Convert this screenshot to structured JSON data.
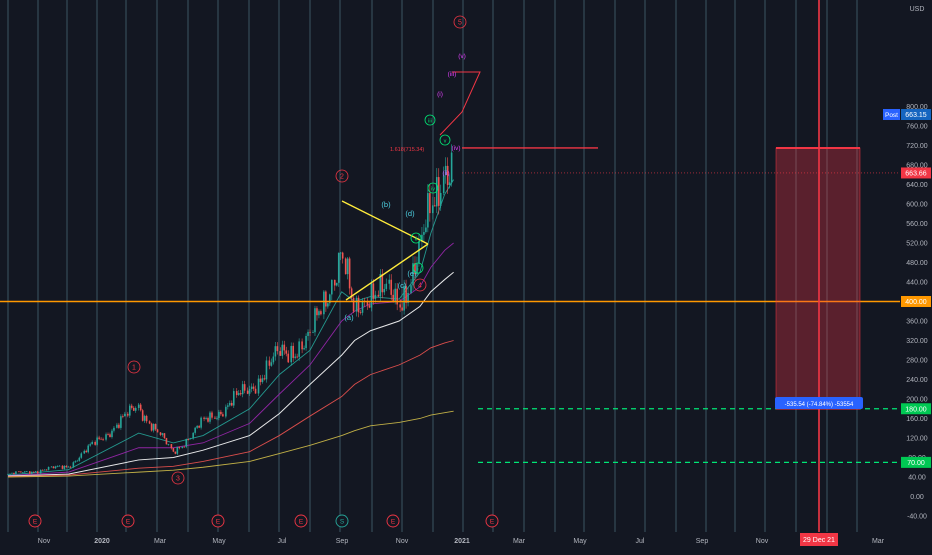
{
  "chart_data": {
    "type": "candlestick",
    "currency": "USD",
    "x_ticks": [
      "Nov",
      "2020",
      "Mar",
      "May",
      "Jul",
      "Sep",
      "Nov",
      "2021",
      "Mar",
      "May",
      "Jul",
      "Sep",
      "Nov",
      "Mar"
    ],
    "y_ticks": [
      "800.00",
      "760.00",
      "720.00",
      "680.00",
      "640.00",
      "600.00",
      "560.00",
      "520.00",
      "480.00",
      "440.00",
      "400.00",
      "360.00",
      "320.00",
      "280.00",
      "240.00",
      "200.00",
      "160.00",
      "120.00",
      "80.00",
      "40.00",
      "0.00",
      "-40.00"
    ],
    "y_range": [
      -50,
      820
    ],
    "price_axis_labels": {
      "last": "663.66",
      "post_tag": "Post",
      "post": "663.15",
      "level_400": "400.00",
      "level_180": "180.00",
      "level_70": "70.00"
    },
    "measure_label": "-535.54 (-74.84%) -53554",
    "date_marker": "29 Dec 21",
    "fib_label": "1.618(715.34)",
    "horizontal_levels": [
      {
        "value": 400,
        "color": "#ff9800",
        "style": "solid"
      },
      {
        "value": 715,
        "color": "#f23645",
        "style": "solid"
      },
      {
        "value": 180,
        "color": "#00e676",
        "style": "dashed"
      },
      {
        "value": 70,
        "color": "#00e676",
        "style": "dashed"
      }
    ],
    "wave_labels": {
      "primary": [
        "1",
        "2",
        "3",
        "4",
        "5"
      ],
      "abcde": [
        "(a)",
        "(b)",
        "(c)",
        "(d)",
        "(e)"
      ],
      "green": [
        "i",
        "ii",
        "iii",
        "iv",
        "v"
      ],
      "minor": [
        "(i)",
        "(ii)",
        "(iii)",
        "(iv)",
        "(v)"
      ]
    },
    "event_markers": [
      "E",
      "E",
      "E",
      "E",
      "S",
      "E",
      "E"
    ],
    "price_series": {
      "dates": [
        "2019-10-01",
        "2019-12-01",
        "2020-02-10",
        "2020-03-16",
        "2020-04-15",
        "2020-06-01",
        "2020-07-01",
        "2020-08-01",
        "2020-09-02",
        "2020-09-15",
        "2020-10-01",
        "2020-10-30",
        "2020-11-20",
        "2020-12-01",
        "2020-12-15",
        "2020-12-24"
      ],
      "close": [
        45,
        62,
        185,
        90,
        150,
        220,
        290,
        320,
        500,
        370,
        430,
        400,
        490,
        585,
        690,
        663
      ]
    },
    "moving_averages": [
      {
        "color": "#26a69a",
        "values": [
          44,
          55,
          130,
          110,
          125,
          180,
          250,
          300,
          420,
          400,
          410,
          405,
          460,
          540,
          620,
          650
        ]
      },
      {
        "color": "#9c27b0",
        "values": [
          43,
          50,
          100,
          100,
          110,
          150,
          210,
          270,
          360,
          380,
          395,
          400,
          430,
          470,
          505,
          520
        ]
      },
      {
        "color": "#ffffff",
        "values": [
          42,
          46,
          75,
          80,
          95,
          125,
          170,
          230,
          290,
          320,
          340,
          360,
          390,
          420,
          445,
          460
        ]
      },
      {
        "color": "#ef5350",
        "values": [
          41,
          44,
          58,
          62,
          72,
          92,
          125,
          165,
          205,
          230,
          250,
          270,
          290,
          305,
          315,
          320
        ]
      },
      {
        "color": "#d4c04a",
        "values": [
          40,
          42,
          50,
          54,
          60,
          72,
          88,
          105,
          125,
          135,
          145,
          152,
          160,
          167,
          172,
          175
        ]
      }
    ],
    "grid": "vertical"
  }
}
